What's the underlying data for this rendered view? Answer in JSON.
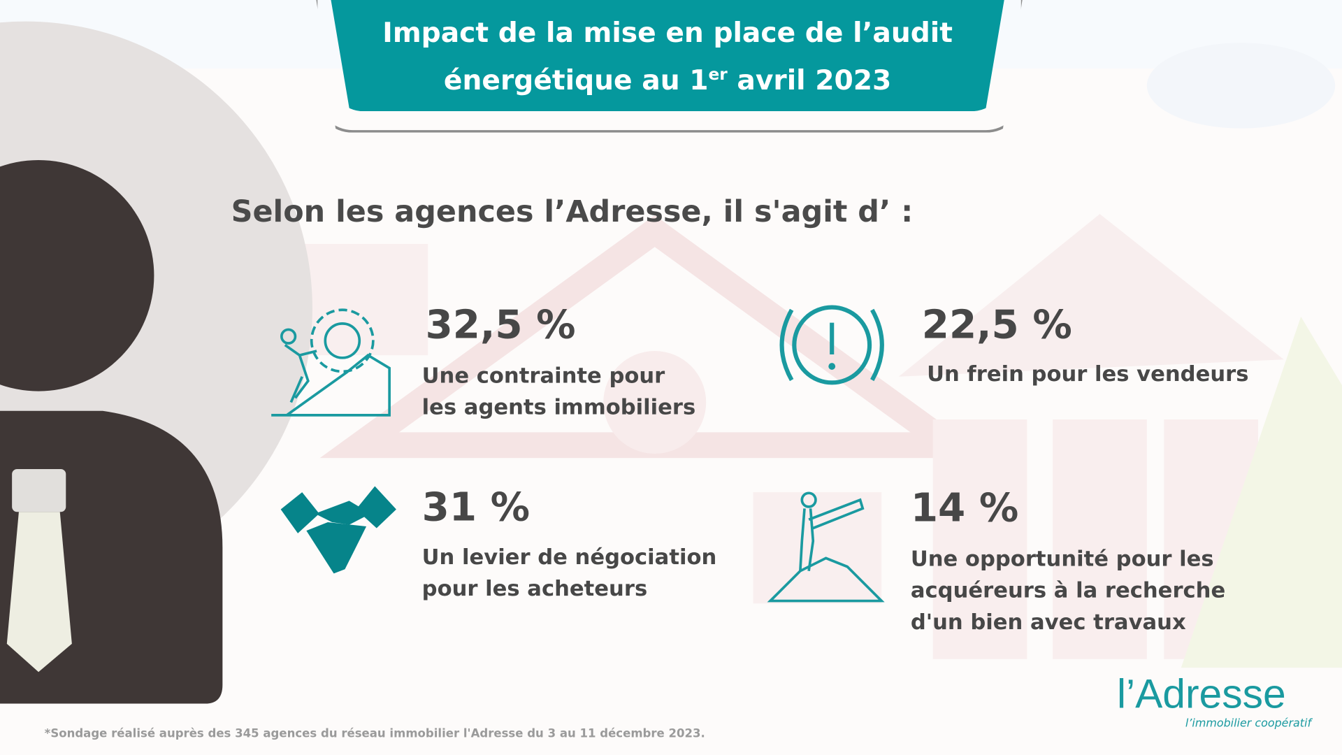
{
  "header": {
    "title_line1": "Impact de la mise en place de l’audit",
    "title_line2_pre": "énergétique au 1",
    "title_sup": "er",
    "title_line2_post": " avril 2023"
  },
  "subtitle": "Selon les agences l’Adresse, il s'agit d’ :",
  "stats": [
    {
      "percent": "32,5 %",
      "line1": "Une contrainte pour",
      "line2": "les agents immobiliers",
      "icon": "climbing-gear-icon"
    },
    {
      "percent": "22,5 %",
      "line1": "Un frein pour les vendeurs",
      "icon": "warning-icon"
    },
    {
      "percent": "31 %",
      "line1": "Un levier de négociation",
      "line2": "pour les acheteurs",
      "icon": "handshake-icon"
    },
    {
      "percent": "14 %",
      "line1": "Une opportunité pour les",
      "line2": "acquéreurs à la recherche",
      "line3": "d'un bien avec travaux",
      "icon": "telescope-icon"
    }
  ],
  "footnote": "*Sondage réalisé auprès des 345 agences du réseau immobilier l'Adresse du 3 au 11 décembre 2023.",
  "logo": {
    "name": "l’Adresse",
    "tagline": "l’immobilier coopératif"
  },
  "colors": {
    "teal": "#05989d",
    "text": "#474747",
    "person": "#3f3736"
  }
}
